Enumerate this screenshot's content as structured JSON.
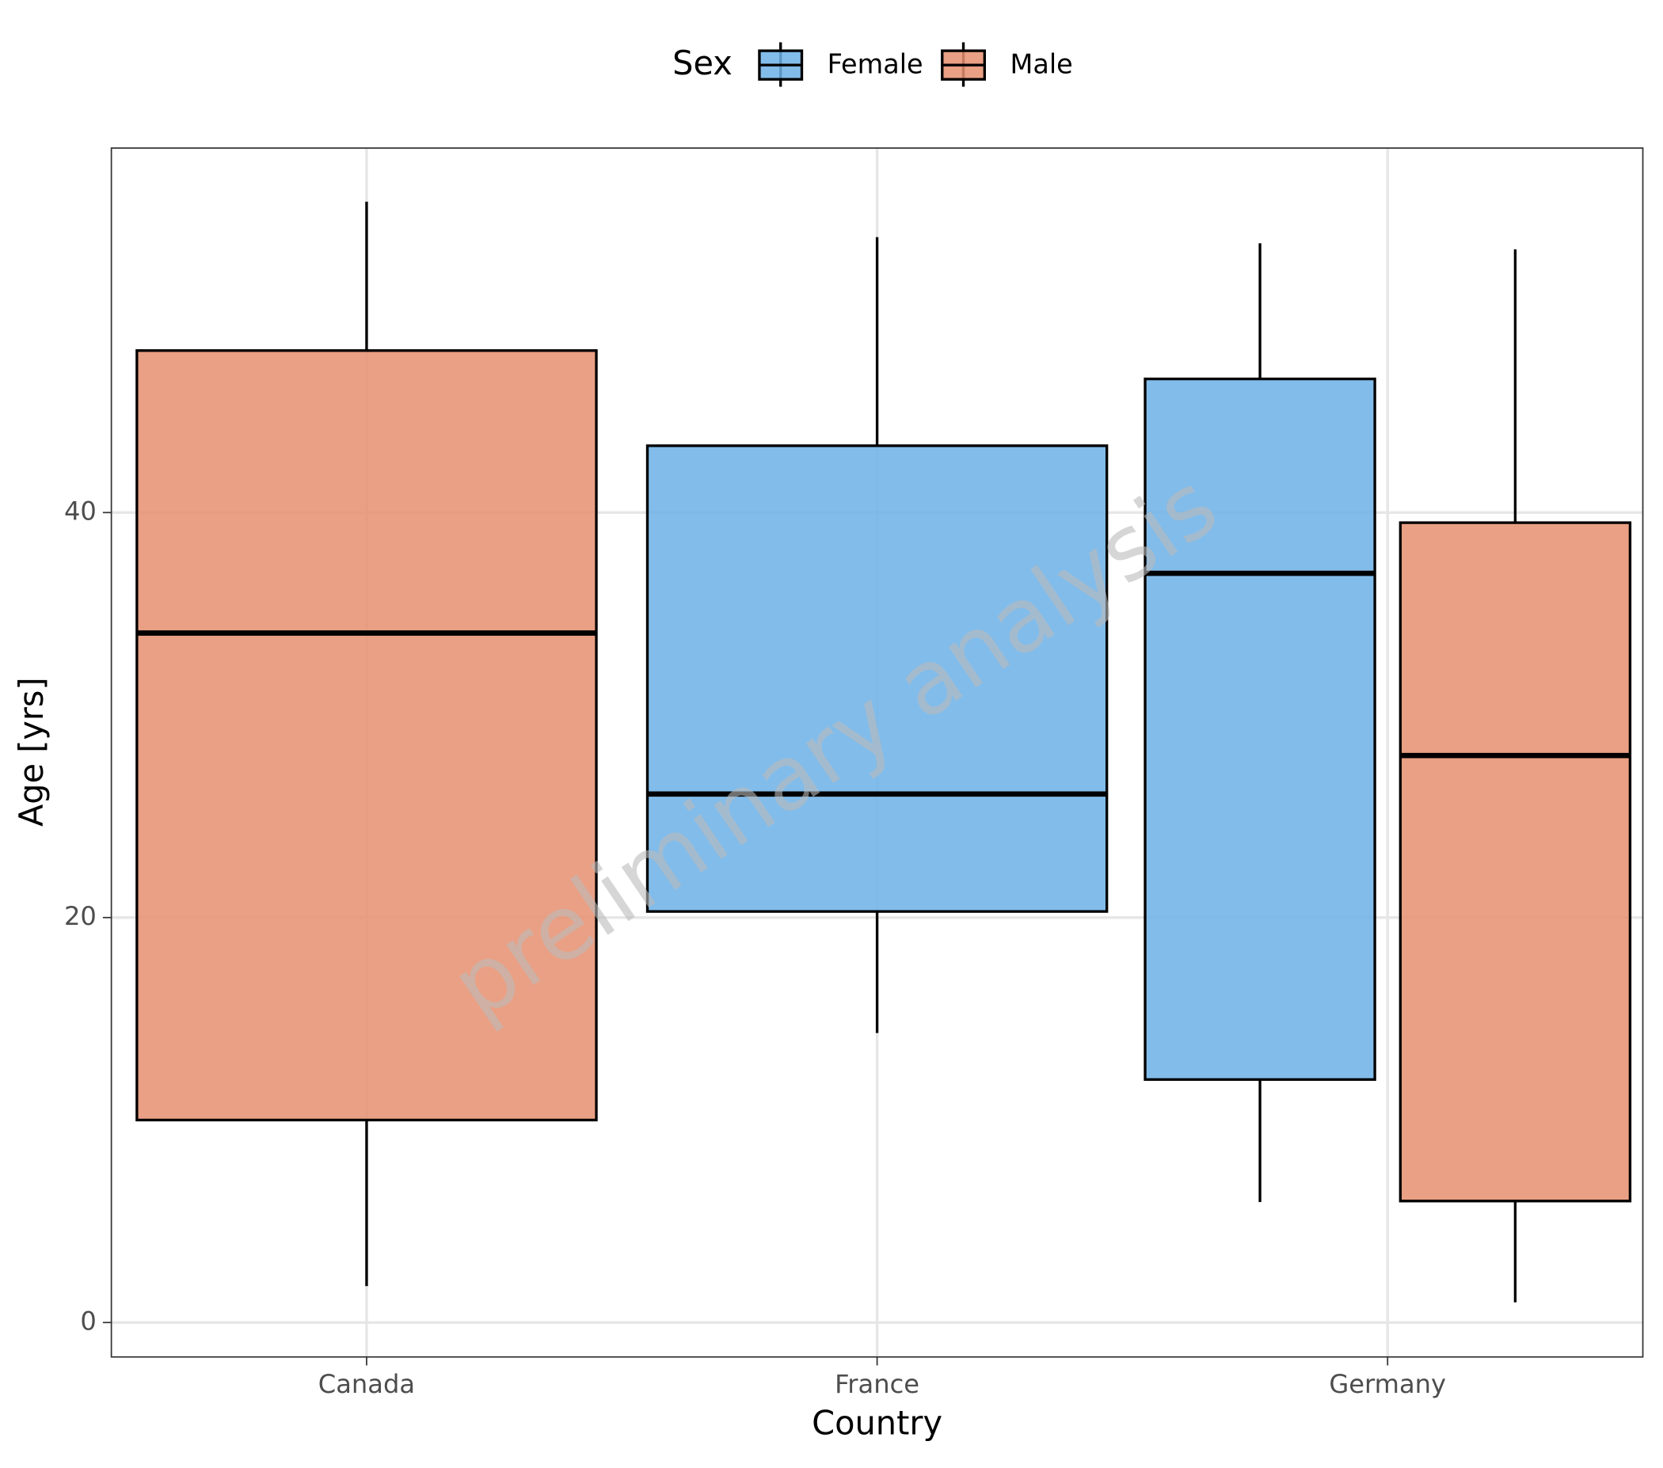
{
  "chart_data": {
    "type": "boxplot",
    "x_label": "Country",
    "y_label": "Age [yrs]",
    "legend_title": "Sex",
    "legend_position": "top",
    "annotation": "preliminary analysis",
    "categories": [
      "Canada",
      "France",
      "Germany"
    ],
    "series": [
      {
        "name": "Female",
        "color": "#6cb0e6",
        "values": [
          null,
          {
            "min": 14.3,
            "q1": 20.3,
            "median": 26.1,
            "q3": 43.3,
            "max": 53.6
          },
          {
            "min": 5.95,
            "q1": 12.0,
            "median": 37.0,
            "q3": 46.6,
            "max": 53.3
          }
        ]
      },
      {
        "name": "Male",
        "color": "#e68f6e",
        "values": [
          {
            "min": 1.8,
            "q1": 10.0,
            "median": 34.05,
            "q3": 48.0,
            "max": 55.35
          },
          null,
          {
            "min": 1.0,
            "q1": 6.0,
            "median": 28.0,
            "q3": 39.5,
            "max": 53.0
          }
        ]
      }
    ],
    "ylim": [
      -1.7,
      58
    ],
    "yticks": [
      0,
      20,
      40
    ],
    "grid": true
  }
}
